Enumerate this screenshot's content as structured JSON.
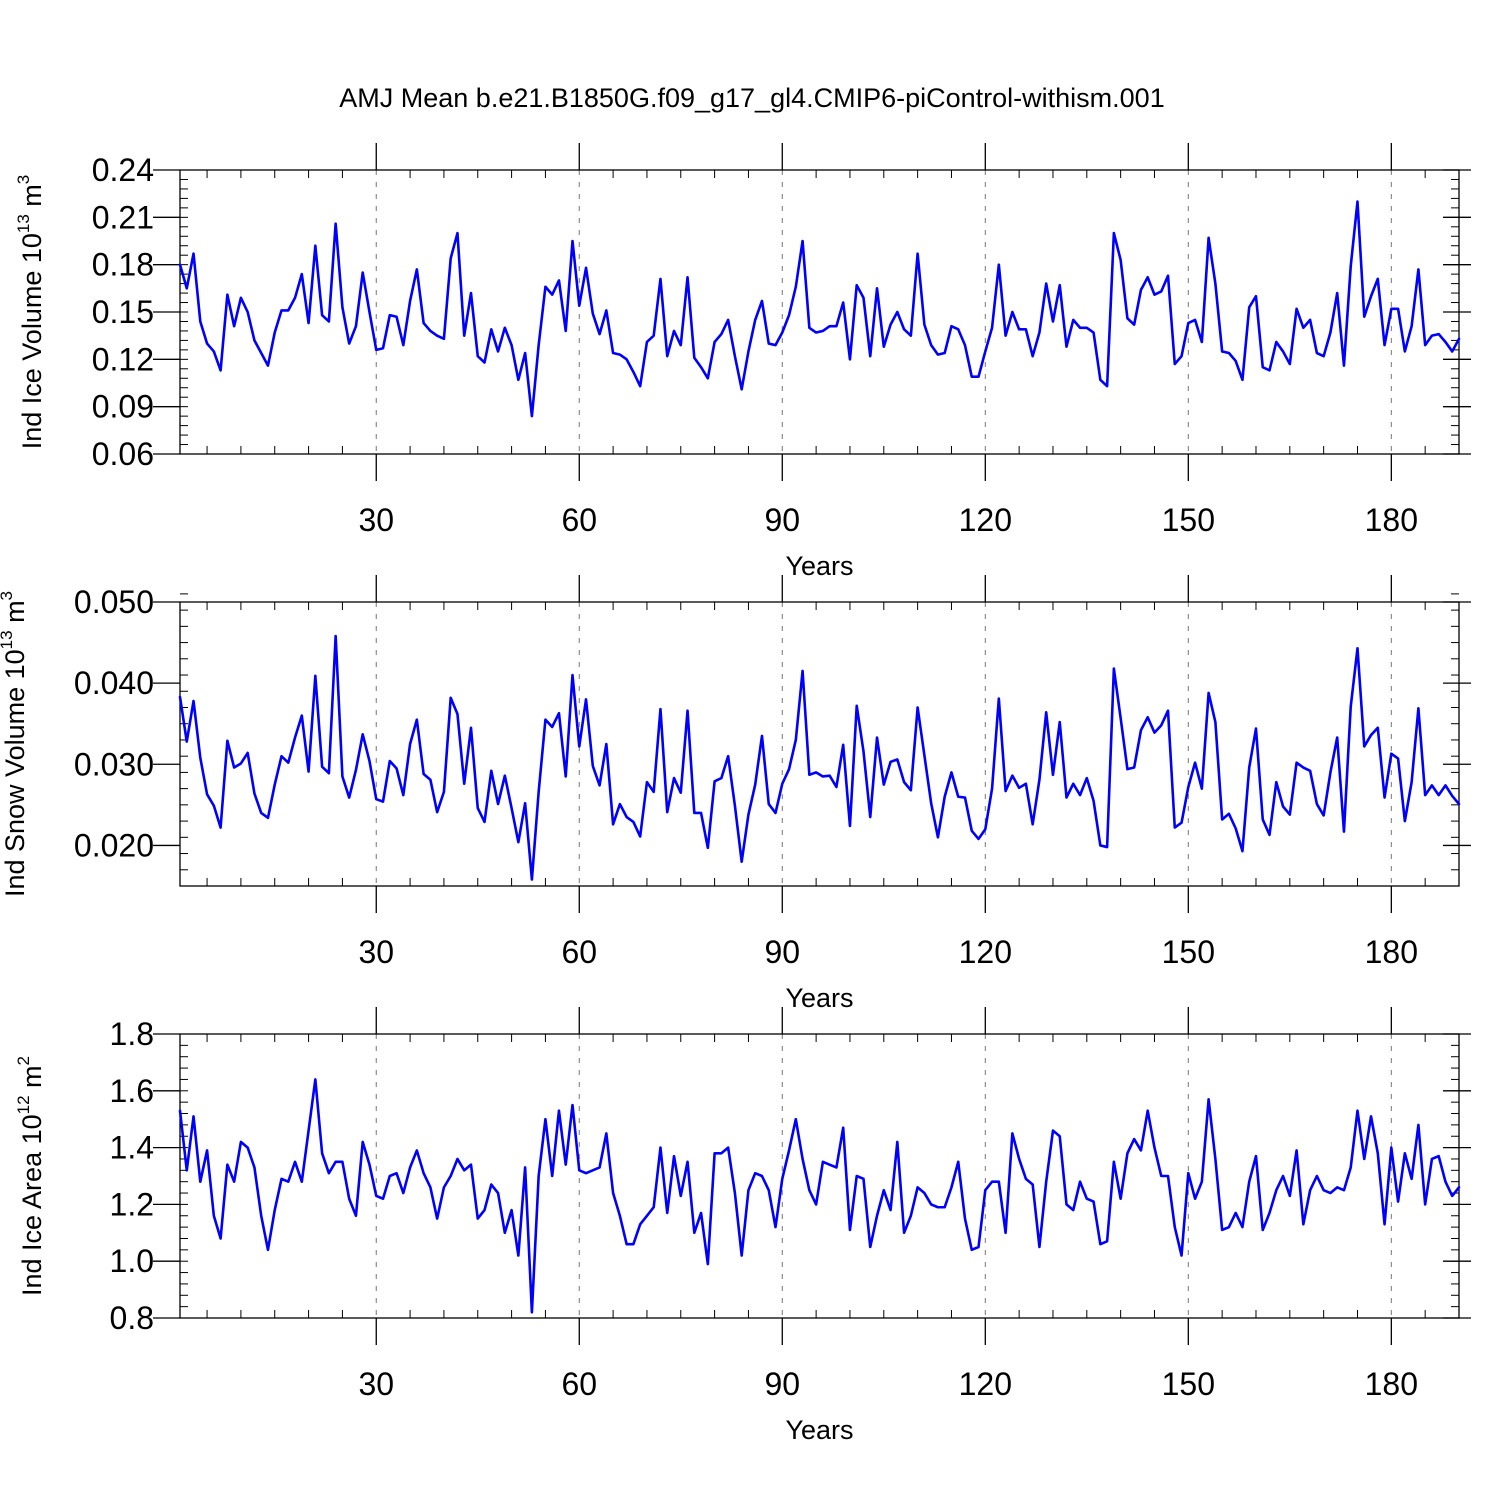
{
  "title": "AMJ Mean b.e21.B1850G.f09_g17_gl4.CMIP6-piControl-withism.001",
  "colors": {
    "line": "#0000ff",
    "axis": "#000000",
    "grid": "#777777"
  },
  "chart_data": [
    {
      "type": "line",
      "ylabel": "Ind Ice Volume 10",
      "ylabel_exp": "13",
      "ylabel_unit": " m",
      "ylabel_unit_exp": "3",
      "xlabel": "Years",
      "xlim": [
        1,
        190
      ],
      "ylim": [
        0.06,
        0.24
      ],
      "yticks": [
        0.06,
        0.09,
        0.12,
        0.15,
        0.18,
        0.21,
        0.24
      ],
      "ytick_labels": [
        "0.06",
        "0.09",
        "0.12",
        "0.15",
        "0.18",
        "0.21",
        "0.24"
      ],
      "yminor_step": 0.006,
      "xticks": [
        30,
        60,
        90,
        120,
        150,
        180
      ],
      "xtick_labels": [
        "30",
        "60",
        "90",
        "120",
        "150",
        "180"
      ],
      "x_start": 1,
      "values": [
        0.18,
        0.165,
        0.187,
        0.144,
        0.13,
        0.125,
        0.113,
        0.161,
        0.141,
        0.159,
        0.15,
        0.132,
        0.124,
        0.116,
        0.137,
        0.151,
        0.151,
        0.159,
        0.174,
        0.143,
        0.192,
        0.148,
        0.144,
        0.206,
        0.153,
        0.13,
        0.141,
        0.175,
        0.15,
        0.126,
        0.127,
        0.148,
        0.147,
        0.129,
        0.157,
        0.177,
        0.143,
        0.138,
        0.135,
        0.133,
        0.184,
        0.2,
        0.135,
        0.162,
        0.122,
        0.118,
        0.139,
        0.125,
        0.14,
        0.129,
        0.107,
        0.124,
        0.084,
        0.129,
        0.166,
        0.161,
        0.17,
        0.138,
        0.195,
        0.154,
        0.178,
        0.149,
        0.136,
        0.151,
        0.124,
        0.123,
        0.12,
        0.112,
        0.103,
        0.131,
        0.135,
        0.171,
        0.122,
        0.138,
        0.129,
        0.172,
        0.121,
        0.115,
        0.108,
        0.131,
        0.136,
        0.145,
        0.122,
        0.101,
        0.125,
        0.145,
        0.157,
        0.13,
        0.129,
        0.137,
        0.148,
        0.166,
        0.195,
        0.14,
        0.137,
        0.138,
        0.141,
        0.141,
        0.156,
        0.12,
        0.167,
        0.159,
        0.122,
        0.165,
        0.128,
        0.142,
        0.15,
        0.139,
        0.135,
        0.187,
        0.142,
        0.129,
        0.123,
        0.124,
        0.141,
        0.139,
        0.129,
        0.109,
        0.109,
        0.125,
        0.14,
        0.18,
        0.135,
        0.15,
        0.139,
        0.139,
        0.122,
        0.137,
        0.168,
        0.144,
        0.167,
        0.128,
        0.145,
        0.14,
        0.14,
        0.137,
        0.107,
        0.103,
        0.2,
        0.183,
        0.146,
        0.142,
        0.164,
        0.172,
        0.161,
        0.163,
        0.173,
        0.117,
        0.122,
        0.143,
        0.145,
        0.131,
        0.197,
        0.168,
        0.125,
        0.124,
        0.119,
        0.107,
        0.153,
        0.16,
        0.115,
        0.113,
        0.131,
        0.125,
        0.117,
        0.152,
        0.14,
        0.145,
        0.124,
        0.122,
        0.137,
        0.162,
        0.116,
        0.179,
        0.22,
        0.147,
        0.16,
        0.171,
        0.129,
        0.152,
        0.152,
        0.125,
        0.141,
        0.177,
        0.129,
        0.135,
        0.136,
        0.131,
        0.125,
        0.133
      ]
    },
    {
      "type": "line",
      "ylabel": "Ind Snow Volume 10",
      "ylabel_exp": "13",
      "ylabel_unit": " m",
      "ylabel_unit_exp": "3",
      "xlabel": "Years",
      "xlim": [
        1,
        190
      ],
      "ylim": [
        0.015,
        0.05
      ],
      "yticks": [
        0.02,
        0.03,
        0.04,
        0.05
      ],
      "ytick_labels": [
        "0.020",
        "0.030",
        "0.040",
        "0.050"
      ],
      "yminor_step": 0.002,
      "xticks": [
        30,
        60,
        90,
        120,
        150,
        180
      ],
      "xtick_labels": [
        "30",
        "60",
        "90",
        "120",
        "150",
        "180"
      ],
      "x_start": 1,
      "values": [
        0.0383,
        0.0328,
        0.0378,
        0.0308,
        0.0263,
        0.0249,
        0.0222,
        0.0329,
        0.0296,
        0.0301,
        0.0314,
        0.0264,
        0.024,
        0.0234,
        0.0275,
        0.031,
        0.0302,
        0.0333,
        0.036,
        0.0291,
        0.0409,
        0.0297,
        0.0289,
        0.0458,
        0.0285,
        0.0259,
        0.0293,
        0.0337,
        0.0304,
        0.0257,
        0.0254,
        0.0304,
        0.0295,
        0.0262,
        0.0325,
        0.0355,
        0.0288,
        0.0281,
        0.0241,
        0.0266,
        0.0382,
        0.0362,
        0.0276,
        0.0345,
        0.0246,
        0.0229,
        0.0292,
        0.0251,
        0.0286,
        0.0246,
        0.0204,
        0.0252,
        0.0158,
        0.0266,
        0.0355,
        0.0346,
        0.0363,
        0.0285,
        0.041,
        0.0322,
        0.038,
        0.0298,
        0.0274,
        0.0325,
        0.0226,
        0.0251,
        0.0235,
        0.0229,
        0.0211,
        0.0278,
        0.0266,
        0.0368,
        0.0241,
        0.0283,
        0.0265,
        0.0366,
        0.024,
        0.024,
        0.0197,
        0.0279,
        0.0283,
        0.031,
        0.0249,
        0.018,
        0.0238,
        0.0275,
        0.0335,
        0.0251,
        0.024,
        0.0276,
        0.0294,
        0.033,
        0.0415,
        0.0287,
        0.029,
        0.0285,
        0.0286,
        0.0272,
        0.0324,
        0.0224,
        0.0372,
        0.0316,
        0.0235,
        0.0333,
        0.0275,
        0.0303,
        0.0306,
        0.0278,
        0.0268,
        0.037,
        0.0311,
        0.0252,
        0.021,
        0.026,
        0.029,
        0.026,
        0.0259,
        0.0218,
        0.0208,
        0.022,
        0.027,
        0.0381,
        0.0267,
        0.0286,
        0.0271,
        0.0276,
        0.0226,
        0.0281,
        0.0364,
        0.0287,
        0.0352,
        0.0259,
        0.0276,
        0.0262,
        0.0283,
        0.0255,
        0.02,
        0.0198,
        0.0418,
        0.0357,
        0.0294,
        0.0296,
        0.0342,
        0.0358,
        0.0339,
        0.0348,
        0.0366,
        0.0222,
        0.0228,
        0.0272,
        0.0302,
        0.027,
        0.0388,
        0.0352,
        0.0232,
        0.0239,
        0.0221,
        0.0193,
        0.0296,
        0.0344,
        0.0232,
        0.0213,
        0.0278,
        0.0248,
        0.0238,
        0.0302,
        0.0296,
        0.0292,
        0.0251,
        0.0237,
        0.029,
        0.0333,
        0.0217,
        0.0371,
        0.0443,
        0.0322,
        0.0336,
        0.0345,
        0.0259,
        0.0313,
        0.0307,
        0.023,
        0.0278,
        0.0369,
        0.0262,
        0.0274,
        0.0262,
        0.0274,
        0.0261,
        0.0251
      ]
    },
    {
      "type": "line",
      "ylabel": "Ind Ice Area 10",
      "ylabel_exp": "12",
      "ylabel_unit": " m",
      "ylabel_unit_exp": "2",
      "xlabel": "Years",
      "xlim": [
        1,
        190
      ],
      "ylim": [
        0.8,
        1.8
      ],
      "yticks": [
        0.8,
        1.0,
        1.2,
        1.4,
        1.6,
        1.8
      ],
      "ytick_labels": [
        "0.8",
        "1.0",
        "1.2",
        "1.4",
        "1.6",
        "1.8"
      ],
      "yminor_step": 0.04,
      "xticks": [
        30,
        60,
        90,
        120,
        150,
        180
      ],
      "xtick_labels": [
        "30",
        "60",
        "90",
        "120",
        "150",
        "180"
      ],
      "x_start": 1,
      "values": [
        1.53,
        1.32,
        1.51,
        1.28,
        1.39,
        1.16,
        1.08,
        1.34,
        1.28,
        1.42,
        1.4,
        1.33,
        1.16,
        1.04,
        1.18,
        1.29,
        1.28,
        1.35,
        1.28,
        1.46,
        1.64,
        1.38,
        1.31,
        1.35,
        1.35,
        1.22,
        1.16,
        1.42,
        1.34,
        1.23,
        1.22,
        1.3,
        1.31,
        1.24,
        1.33,
        1.39,
        1.31,
        1.26,
        1.15,
        1.26,
        1.3,
        1.36,
        1.32,
        1.34,
        1.15,
        1.18,
        1.27,
        1.24,
        1.1,
        1.18,
        1.02,
        1.33,
        0.82,
        1.3,
        1.5,
        1.3,
        1.53,
        1.34,
        1.55,
        1.32,
        1.31,
        1.32,
        1.33,
        1.45,
        1.24,
        1.16,
        1.06,
        1.06,
        1.13,
        1.16,
        1.19,
        1.4,
        1.17,
        1.37,
        1.23,
        1.35,
        1.1,
        1.17,
        0.99,
        1.38,
        1.38,
        1.4,
        1.24,
        1.02,
        1.25,
        1.31,
        1.3,
        1.25,
        1.12,
        1.29,
        1.39,
        1.5,
        1.36,
        1.25,
        1.2,
        1.35,
        1.34,
        1.33,
        1.47,
        1.11,
        1.3,
        1.29,
        1.05,
        1.16,
        1.25,
        1.18,
        1.42,
        1.1,
        1.16,
        1.26,
        1.24,
        1.2,
        1.19,
        1.19,
        1.26,
        1.35,
        1.15,
        1.04,
        1.05,
        1.25,
        1.28,
        1.28,
        1.1,
        1.45,
        1.36,
        1.29,
        1.27,
        1.05,
        1.28,
        1.46,
        1.44,
        1.2,
        1.18,
        1.28,
        1.22,
        1.21,
        1.06,
        1.07,
        1.35,
        1.22,
        1.38,
        1.43,
        1.39,
        1.53,
        1.4,
        1.3,
        1.3,
        1.12,
        1.02,
        1.31,
        1.22,
        1.28,
        1.57,
        1.36,
        1.11,
        1.12,
        1.17,
        1.12,
        1.28,
        1.37,
        1.11,
        1.17,
        1.25,
        1.3,
        1.23,
        1.39,
        1.13,
        1.25,
        1.3,
        1.25,
        1.24,
        1.26,
        1.25,
        1.33,
        1.53,
        1.36,
        1.51,
        1.38,
        1.13,
        1.4,
        1.21,
        1.38,
        1.29,
        1.48,
        1.2,
        1.36,
        1.37,
        1.28,
        1.23,
        1.26
      ]
    }
  ]
}
